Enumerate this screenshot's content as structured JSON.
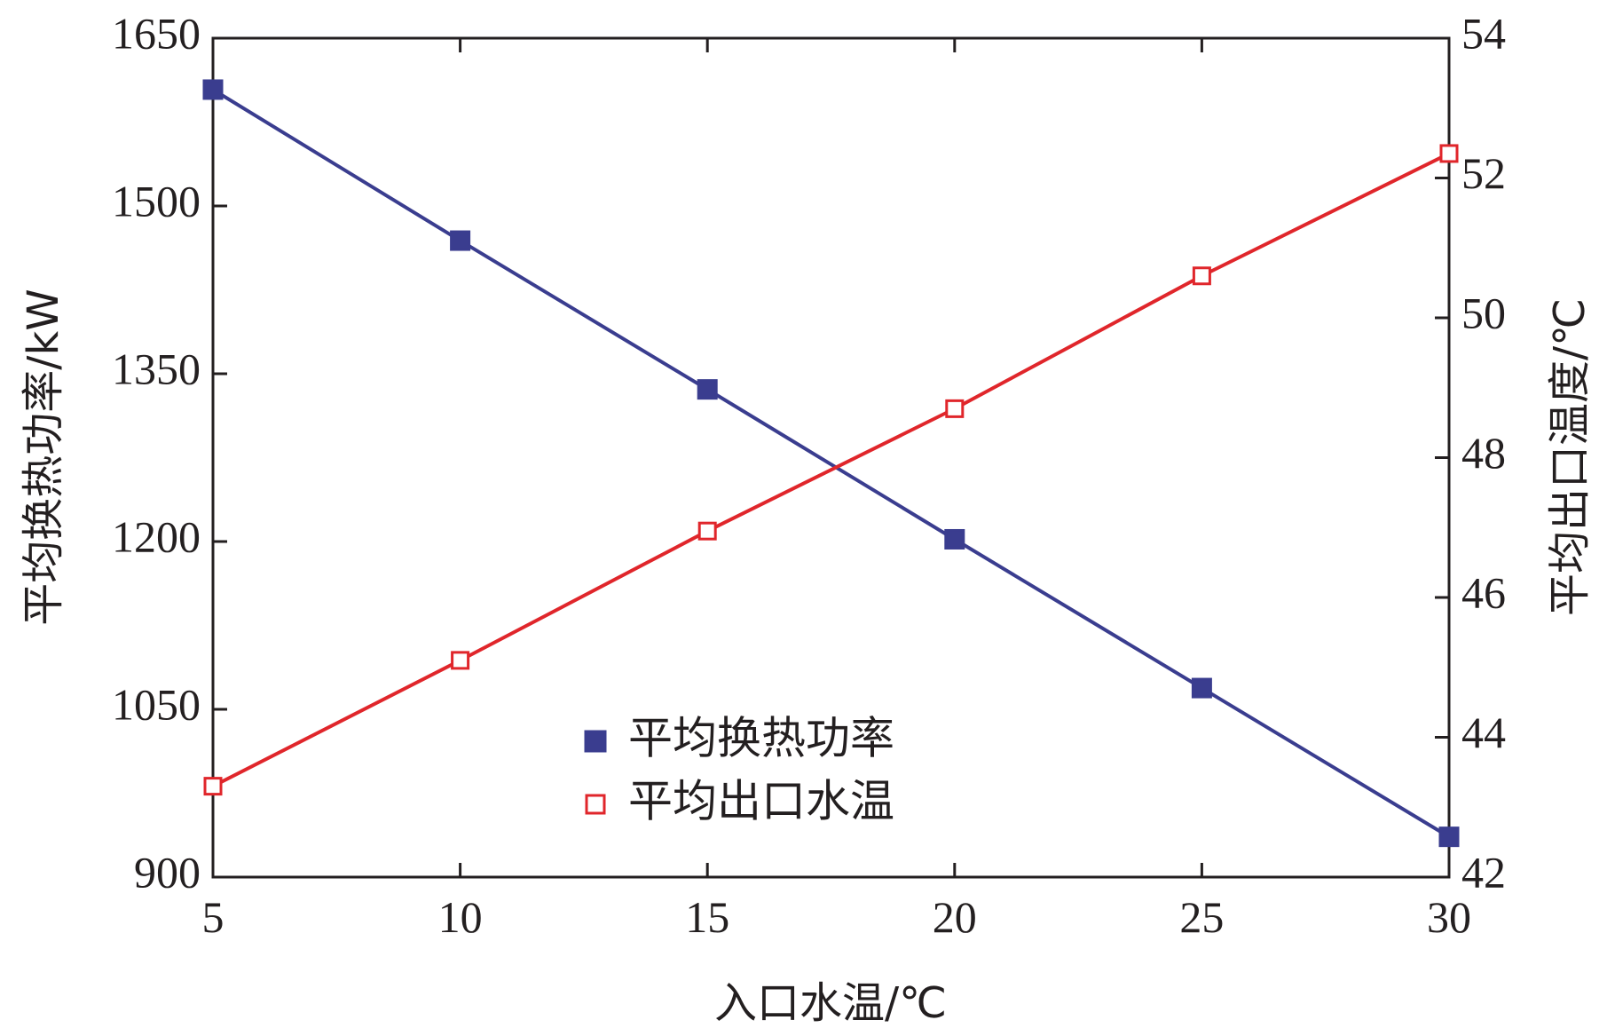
{
  "chart_data": {
    "type": "line",
    "title": "",
    "xlabel": "入口水温/℃",
    "ylabel": "平均换热功率/kW",
    "y2label": "平均出口温度/℃",
    "x": [
      5,
      10,
      15,
      20,
      25,
      30
    ],
    "xlim": [
      5,
      30
    ],
    "xticks": [
      "5",
      "10",
      "15",
      "20",
      "25",
      "30"
    ],
    "ylim": [
      900,
      1650
    ],
    "yticks": [
      "900",
      "1050",
      "1200",
      "1350",
      "1500",
      "1650"
    ],
    "y2lim": [
      42,
      54
    ],
    "y2ticks": [
      "42",
      "44",
      "46",
      "48",
      "50",
      "52",
      "54"
    ],
    "grid": false,
    "legend_position": "lower-center",
    "series": [
      {
        "name": "平均换热功率",
        "axis": "left",
        "values": [
          1604,
          1469,
          1336,
          1202,
          1069,
          936
        ],
        "color": "#3a3d8f",
        "marker": "filled-square"
      },
      {
        "name": "平均出口水温",
        "axis": "right",
        "values": [
          43.3,
          45.1,
          46.95,
          48.7,
          50.6,
          52.35
        ],
        "color": "#e0262b",
        "marker": "open-square"
      }
    ]
  }
}
